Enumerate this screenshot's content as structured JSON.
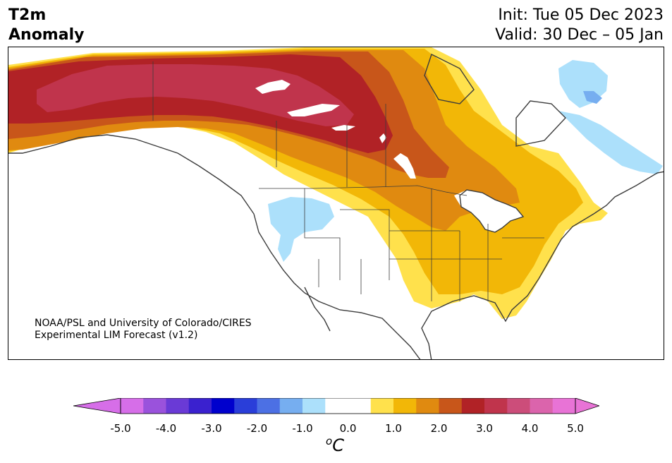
{
  "header": {
    "title_line1": "T2m",
    "title_line2": "Anomaly",
    "init_text": "Init: Tue 05 Dec 2023",
    "valid_text": "Valid: 30 Dec – 05 Jan"
  },
  "credit": {
    "line1": "NOAA/PSL and University of Colorado/CIRES",
    "line2": "Experimental LIM Forecast (v1.2)"
  },
  "colorbar": {
    "unit_base": "C",
    "unit_sup": "o",
    "min": -5.0,
    "max": 5.0,
    "step": 0.5,
    "under_color": "#d66ee8",
    "over_color": "#e873d6",
    "colors": [
      "#d66ee8",
      "#9a52dc",
      "#6a3ad6",
      "#3a21cf",
      "#0000cd",
      "#2a3ed9",
      "#4c70e4",
      "#76aef0",
      "#ace0fb",
      "#ffffff",
      "#ffffff",
      "#ffe14c",
      "#f2b707",
      "#e08a10",
      "#c8561a",
      "#b12226",
      "#c0344c",
      "#cc4d7a",
      "#db64ac",
      "#e873d6"
    ],
    "tick_labels": [
      "-5.0",
      "-4.0",
      "-3.0",
      "-2.0",
      "-1.0",
      "0.0",
      "1.0",
      "2.0",
      "3.0",
      "4.0",
      "5.0"
    ]
  },
  "map_colors": {
    "ocean": "#ffffff",
    "land_neutral": "#ffffff",
    "lake": "#ffffff",
    "coast": "#3c3c3c",
    "anom_p05": "#ffe14c",
    "anom_p10": "#f2b707",
    "anom_p15": "#e08a10",
    "anom_p20": "#c8561a",
    "anom_p25": "#b12226",
    "anom_p30": "#c0344c",
    "anom_m05": "#ace0fb",
    "anom_m10": "#76aef0"
  }
}
